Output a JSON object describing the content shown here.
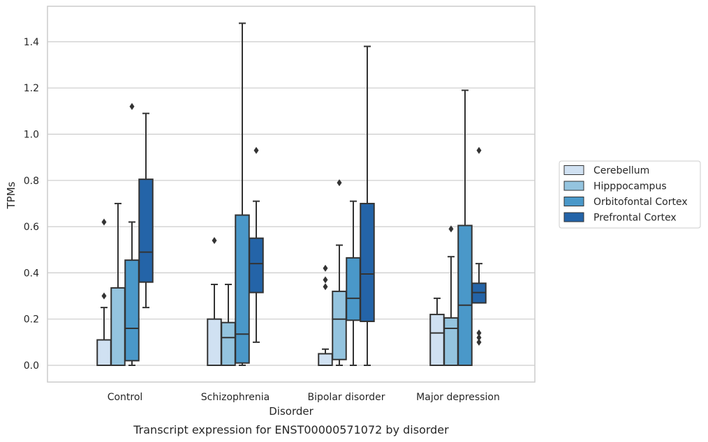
{
  "chart_data": {
    "type": "box",
    "title": "",
    "caption": "Transcript expression for ENST00000571072 by disorder",
    "xlabel": "Disorder",
    "ylabel": "TPMs",
    "ylim": [
      -0.07,
      1.56
    ],
    "yticks": [
      "0.0",
      "0.2",
      "0.4",
      "0.6",
      "0.8",
      "1.0",
      "1.2",
      "1.4"
    ],
    "grid": "horizontal",
    "legend_position": "right",
    "categories": [
      "Control",
      "Schizophrenia",
      "Bipolar disorder",
      "Major depression"
    ],
    "series": [
      {
        "name": "Cerebellum",
        "color": "#d0e1f2",
        "boxes": [
          {
            "whislo": 0.0,
            "q1": 0.0,
            "med": 0.0,
            "q3": 0.11,
            "whishi": 0.25,
            "fliers": [
              0.3,
              0.62
            ]
          },
          {
            "whislo": 0.0,
            "q1": 0.0,
            "med": 0.0,
            "q3": 0.2,
            "whishi": 0.35,
            "fliers": [
              0.54
            ]
          },
          {
            "whislo": 0.0,
            "q1": 0.0,
            "med": 0.0,
            "q3": 0.05,
            "whishi": 0.07,
            "fliers": [
              0.34,
              0.37,
              0.42
            ]
          },
          {
            "whislo": 0.0,
            "q1": 0.0,
            "med": 0.14,
            "q3": 0.22,
            "whishi": 0.29,
            "fliers": []
          }
        ]
      },
      {
        "name": "Hipppocampus",
        "color": "#94c4df",
        "boxes": [
          {
            "whislo": 0.0,
            "q1": 0.0,
            "med": 0.0,
            "q3": 0.335,
            "whishi": 0.7,
            "fliers": []
          },
          {
            "whislo": 0.0,
            "q1": 0.0,
            "med": 0.12,
            "q3": 0.185,
            "whishi": 0.35,
            "fliers": []
          },
          {
            "whislo": 0.0,
            "q1": 0.025,
            "med": 0.2,
            "q3": 0.32,
            "whishi": 0.52,
            "fliers": [
              0.79
            ]
          },
          {
            "whislo": 0.0,
            "q1": 0.0,
            "med": 0.16,
            "q3": 0.205,
            "whishi": 0.47,
            "fliers": [
              0.59
            ]
          }
        ]
      },
      {
        "name": "Orbitofontal Cortex",
        "color": "#4a98c9",
        "boxes": [
          {
            "whislo": 0.0,
            "q1": 0.02,
            "med": 0.16,
            "q3": 0.455,
            "whishi": 0.62,
            "fliers": [
              1.12
            ]
          },
          {
            "whislo": 0.0,
            "q1": 0.01,
            "med": 0.135,
            "q3": 0.65,
            "whishi": 1.48,
            "fliers": []
          },
          {
            "whislo": 0.0,
            "q1": 0.195,
            "med": 0.29,
            "q3": 0.465,
            "whishi": 0.71,
            "fliers": []
          },
          {
            "whislo": 0.0,
            "q1": 0.0,
            "med": 0.26,
            "q3": 0.605,
            "whishi": 1.19,
            "fliers": []
          }
        ]
      },
      {
        "name": "Prefrontal Cortex",
        "color": "#2464a8",
        "boxes": [
          {
            "whislo": 0.25,
            "q1": 0.36,
            "med": 0.49,
            "q3": 0.805,
            "whishi": 1.09,
            "fliers": []
          },
          {
            "whislo": 0.1,
            "q1": 0.315,
            "med": 0.44,
            "q3": 0.55,
            "whishi": 0.71,
            "fliers": [
              0.93
            ]
          },
          {
            "whislo": 0.0,
            "q1": 0.19,
            "med": 0.395,
            "q3": 0.7,
            "whishi": 1.38,
            "fliers": []
          },
          {
            "whislo": 0.27,
            "q1": 0.27,
            "med": 0.315,
            "q3": 0.355,
            "whishi": 0.44,
            "fliers": [
              0.1,
              0.12,
              0.14,
              0.93
            ]
          }
        ]
      }
    ]
  }
}
